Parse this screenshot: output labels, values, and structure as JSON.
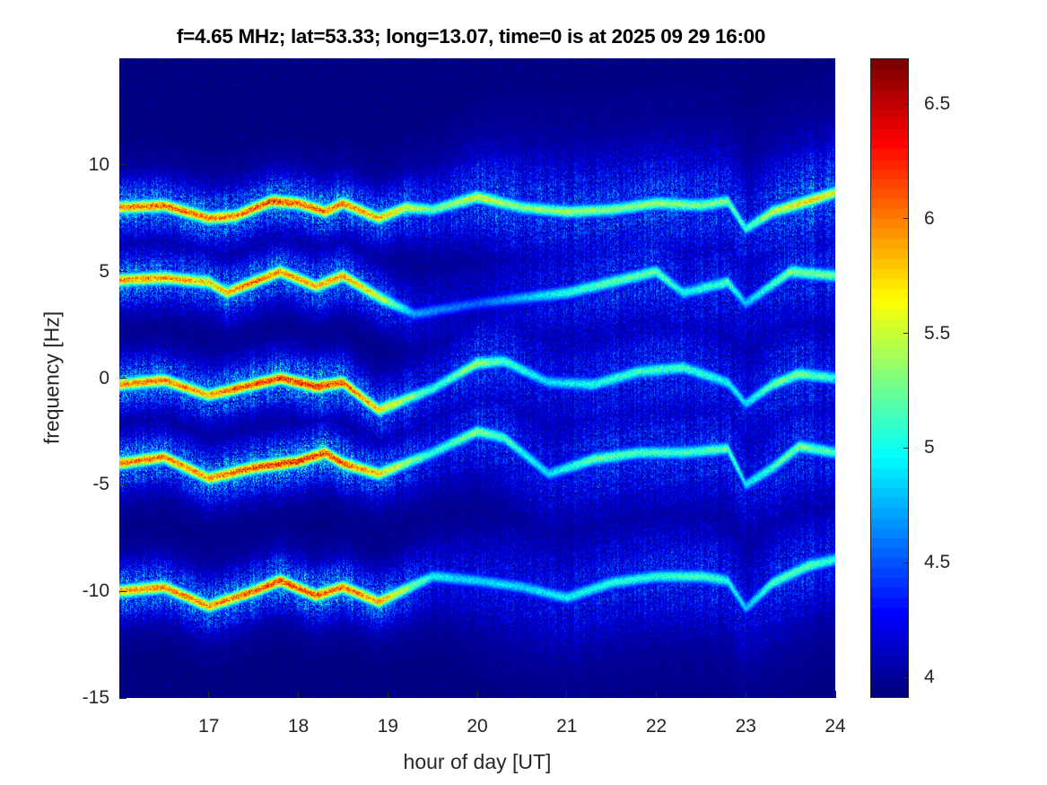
{
  "chart_data": {
    "type": "heatmap",
    "title": "f=4.65 MHz;  lat=53.33; long=13.07, time=0 is at 2025 09 29 16:00",
    "xlabel": "hour of day [UT]",
    "ylabel": "frequency [Hz]",
    "xlim": [
      16,
      24
    ],
    "ylim": [
      -15,
      15
    ],
    "xticks": [
      17,
      18,
      19,
      20,
      21,
      22,
      23,
      24
    ],
    "yticks": [
      10,
      5,
      0,
      -5,
      -10,
      -15
    ],
    "colorbar": {
      "colormap": "jet",
      "clim": [
        3.91,
        6.7
      ],
      "ticks": [
        6.5,
        6,
        5.5,
        5,
        4.5,
        4
      ]
    },
    "background_value": 3.95,
    "traces": [
      {
        "name": "trace-plus-8",
        "points": [
          [
            16,
            8.0,
            6.3
          ],
          [
            16.5,
            8.1,
            6.4
          ],
          [
            17,
            7.5,
            6.3
          ],
          [
            17.3,
            7.6,
            6.3
          ],
          [
            17.7,
            8.3,
            6.5
          ],
          [
            18,
            8.2,
            6.4
          ],
          [
            18.3,
            7.8,
            6.3
          ],
          [
            18.5,
            8.2,
            6.3
          ],
          [
            18.9,
            7.5,
            6.1
          ],
          [
            19.2,
            8.0,
            5.8
          ],
          [
            19.5,
            7.9,
            5.4
          ],
          [
            20,
            8.5,
            5.8
          ],
          [
            20.5,
            8.0,
            5.5
          ],
          [
            21,
            7.8,
            5.6
          ],
          [
            21.5,
            7.9,
            5.5
          ],
          [
            22,
            8.2,
            5.6
          ],
          [
            22.5,
            8.1,
            5.5
          ],
          [
            22.8,
            8.3,
            5.5
          ],
          [
            23,
            7.0,
            5.2
          ],
          [
            23.3,
            7.8,
            5.7
          ],
          [
            23.7,
            8.3,
            6.0
          ],
          [
            24,
            8.7,
            5.8
          ]
        ]
      },
      {
        "name": "trace-plus-5",
        "points": [
          [
            16,
            4.6,
            6.2
          ],
          [
            16.5,
            4.7,
            6.2
          ],
          [
            17,
            4.5,
            6.0
          ],
          [
            17.2,
            4.0,
            6.1
          ],
          [
            17.5,
            4.5,
            6.3
          ],
          [
            17.8,
            5.0,
            6.2
          ],
          [
            18.2,
            4.3,
            6.1
          ],
          [
            18.5,
            4.8,
            6.2
          ],
          [
            18.9,
            3.8,
            5.8
          ],
          [
            19.3,
            3.0,
            4.8
          ],
          [
            20,
            3.5,
            4.6
          ],
          [
            21,
            4.0,
            5.2
          ],
          [
            21.5,
            4.5,
            5.4
          ],
          [
            22,
            5.0,
            5.4
          ],
          [
            22.3,
            4.0,
            5.1
          ],
          [
            22.8,
            4.5,
            5.3
          ],
          [
            23,
            3.5,
            4.9
          ],
          [
            23.5,
            5.0,
            5.5
          ],
          [
            24,
            4.8,
            5.4
          ]
        ]
      },
      {
        "name": "trace-zero",
        "points": [
          [
            16,
            -0.3,
            6.2
          ],
          [
            16.5,
            -0.1,
            6.3
          ],
          [
            17,
            -0.8,
            6.1
          ],
          [
            17.3,
            -0.5,
            6.4
          ],
          [
            17.8,
            0.0,
            6.5
          ],
          [
            18.2,
            -0.4,
            6.6
          ],
          [
            18.5,
            -0.2,
            6.4
          ],
          [
            18.9,
            -1.5,
            6.0
          ],
          [
            19.5,
            -0.5,
            5.2
          ],
          [
            20,
            0.7,
            5.6
          ],
          [
            20.3,
            0.8,
            5.3
          ],
          [
            20.8,
            -0.2,
            5.0
          ],
          [
            21.3,
            -0.3,
            5.2
          ],
          [
            21.8,
            0.3,
            5.3
          ],
          [
            22.3,
            0.5,
            5.3
          ],
          [
            22.8,
            -0.2,
            5.1
          ],
          [
            23,
            -1.2,
            5.0
          ],
          [
            23.3,
            -0.3,
            5.4
          ],
          [
            23.6,
            0.2,
            5.5
          ],
          [
            24,
            0.0,
            5.2
          ]
        ]
      },
      {
        "name": "trace-minus-4",
        "points": [
          [
            16,
            -4.0,
            6.3
          ],
          [
            16.5,
            -3.7,
            6.3
          ],
          [
            17,
            -4.7,
            6.2
          ],
          [
            17.5,
            -4.2,
            6.5
          ],
          [
            18,
            -3.9,
            6.6
          ],
          [
            18.3,
            -3.5,
            6.5
          ],
          [
            18.5,
            -4.0,
            6.4
          ],
          [
            18.9,
            -4.5,
            6.0
          ],
          [
            19.5,
            -3.5,
            5.2
          ],
          [
            20,
            -2.5,
            5.5
          ],
          [
            20.3,
            -2.8,
            5.3
          ],
          [
            20.8,
            -4.5,
            5.0
          ],
          [
            21.3,
            -3.8,
            5.4
          ],
          [
            21.8,
            -3.5,
            5.3
          ],
          [
            22.3,
            -3.5,
            5.3
          ],
          [
            22.8,
            -3.3,
            5.4
          ],
          [
            23,
            -5.0,
            5.0
          ],
          [
            23.3,
            -4.2,
            5.3
          ],
          [
            23.6,
            -3.2,
            5.5
          ],
          [
            24,
            -3.5,
            5.3
          ]
        ]
      },
      {
        "name": "trace-minus-10",
        "points": [
          [
            16,
            -10.0,
            6.2
          ],
          [
            16.5,
            -9.8,
            6.3
          ],
          [
            17,
            -10.7,
            6.2
          ],
          [
            17.5,
            -10.0,
            6.4
          ],
          [
            17.8,
            -9.5,
            6.5
          ],
          [
            18.2,
            -10.2,
            6.4
          ],
          [
            18.5,
            -9.8,
            6.3
          ],
          [
            18.9,
            -10.5,
            6.2
          ],
          [
            19.5,
            -9.3,
            5.1
          ],
          [
            20,
            -9.5,
            5.0
          ],
          [
            20.5,
            -9.8,
            5.0
          ],
          [
            21,
            -10.3,
            5.1
          ],
          [
            21.5,
            -9.6,
            5.2
          ],
          [
            22,
            -9.3,
            5.2
          ],
          [
            22.5,
            -9.3,
            5.3
          ],
          [
            22.8,
            -9.5,
            5.2
          ],
          [
            23,
            -10.8,
            4.9
          ],
          [
            23.3,
            -9.6,
            5.3
          ],
          [
            23.7,
            -8.8,
            5.4
          ],
          [
            24,
            -8.5,
            5.2
          ]
        ]
      }
    ]
  }
}
